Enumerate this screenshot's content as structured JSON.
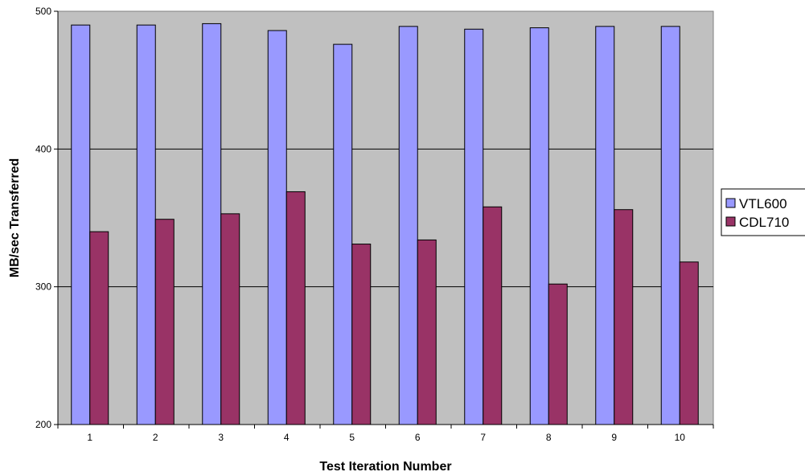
{
  "chart_data": {
    "type": "bar",
    "title": "",
    "xlabel": "Test Iteration Number",
    "ylabel": "MB/sec Transferred",
    "categories": [
      "1",
      "2",
      "3",
      "4",
      "5",
      "6",
      "7",
      "8",
      "9",
      "10"
    ],
    "series": [
      {
        "name": "VTL600",
        "color": "#9999ff",
        "values": [
          490,
          490,
          491,
          486,
          476,
          489,
          487,
          488,
          489,
          489
        ]
      },
      {
        "name": "CDL710",
        "color": "#993366",
        "values": [
          340,
          349,
          353,
          369,
          331,
          334,
          358,
          302,
          356,
          318
        ]
      }
    ],
    "ylim": [
      200,
      500
    ],
    "yticks": [
      200,
      300,
      400,
      500
    ],
    "grid": true,
    "plot_background": "#c0c0c0",
    "legend_position": "right"
  }
}
